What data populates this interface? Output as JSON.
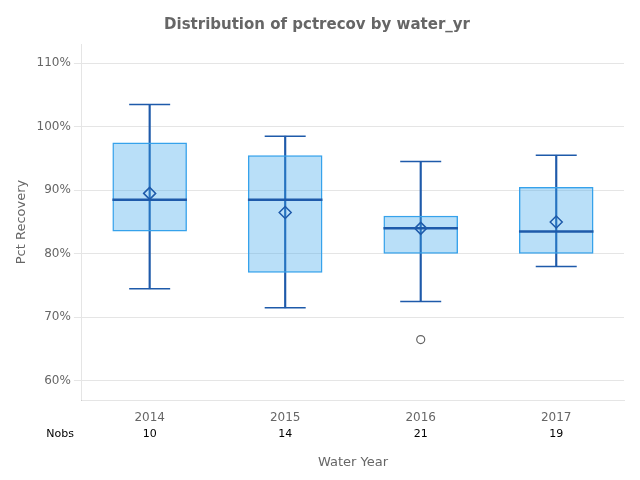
{
  "chart_data": {
    "type": "box",
    "title": "Distribution of pctrecov by water_yr",
    "xlabel": "Water Year",
    "ylabel": "Pct Recovery",
    "categories": [
      "2014",
      "2015",
      "2016",
      "2017"
    ],
    "q1": [
      83.5,
      77.0,
      80.0,
      80.0
    ],
    "median": [
      88.5,
      88.5,
      84.0,
      83.5
    ],
    "q3": [
      97.5,
      95.5,
      86.0,
      90.5
    ],
    "whisker_low": [
      74.5,
      71.5,
      72.5,
      78.0
    ],
    "whisker_high": [
      103.5,
      98.5,
      94.5,
      95.5
    ],
    "mean": [
      89.5,
      86.5,
      84.0,
      85.0
    ],
    "outliers": [
      [],
      [],
      [
        66.5
      ],
      []
    ],
    "nobs_label": "Nobs",
    "nobs": [
      10,
      14,
      21,
      19
    ],
    "ylim": [
      57,
      113
    ],
    "yticks": [
      {
        "value": 60,
        "label": "60%"
      },
      {
        "value": 70,
        "label": "70%"
      },
      {
        "value": 80,
        "label": "80%"
      },
      {
        "value": 90,
        "label": "90%"
      },
      {
        "value": 100,
        "label": "100%"
      },
      {
        "value": 110,
        "label": "110%"
      }
    ],
    "grid": "y"
  }
}
